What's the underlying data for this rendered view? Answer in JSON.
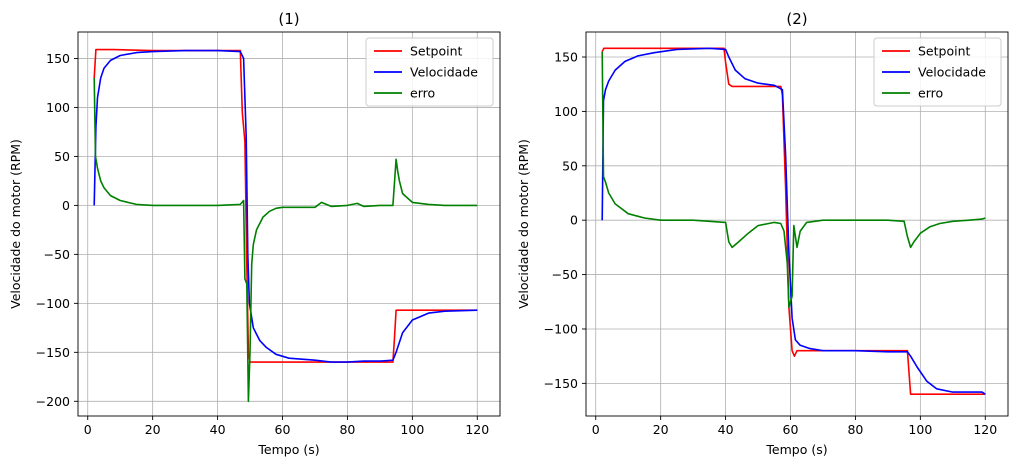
{
  "figure": {
    "background": "#ffffff",
    "grid_color": "#b0b0b0"
  },
  "chart_data": [
    {
      "type": "line",
      "title": "(1)",
      "xlabel": "Tempo (s)",
      "ylabel": "Velocidade do motor (RPM)",
      "xlim": [
        -3,
        127
      ],
      "ylim": [
        -215,
        177
      ],
      "xticks": [
        0,
        20,
        40,
        60,
        80,
        100,
        120
      ],
      "yticks": [
        -200,
        -150,
        -100,
        -50,
        0,
        50,
        100,
        150
      ],
      "grid": true,
      "legend": "top-right",
      "series": [
        {
          "name": "Setpoint",
          "color": "#ff0000",
          "x": [
            2,
            2.5,
            8,
            20,
            35,
            47,
            47.6,
            48.4,
            49,
            49.5,
            50,
            60,
            70,
            80,
            90,
            94,
            94.5,
            95,
            100,
            110,
            120
          ],
          "y": [
            130,
            159,
            159,
            158,
            158,
            158,
            95,
            65,
            -60,
            -150,
            -160,
            -160,
            -160,
            -160,
            -160,
            -160,
            -135,
            -107,
            -107,
            -107,
            -107
          ]
        },
        {
          "name": "Velocidade",
          "color": "#0000ff",
          "x": [
            2,
            2.5,
            3,
            4,
            5,
            7,
            10,
            15,
            20,
            30,
            40,
            47,
            48,
            48.8,
            49.3,
            49.8,
            51,
            53,
            55,
            58,
            62,
            66,
            70,
            75,
            80,
            85,
            90,
            94,
            95,
            97,
            100,
            105,
            110,
            120
          ],
          "y": [
            0,
            80,
            110,
            130,
            140,
            148,
            153,
            156,
            157,
            158,
            158,
            157,
            150,
            70,
            -50,
            -100,
            -125,
            -138,
            -145,
            -152,
            -156,
            -157,
            -158,
            -160,
            -160,
            -159,
            -159,
            -158,
            -150,
            -130,
            -117,
            -110,
            -108,
            -107
          ]
        },
        {
          "name": "erro",
          "color": "#008000",
          "x": [
            2,
            2.4,
            3,
            4,
            5,
            7,
            10,
            15,
            20,
            30,
            40,
            47,
            48,
            48.4,
            49,
            49.5,
            50,
            50.5,
            51,
            52,
            54,
            56,
            58,
            60,
            65,
            70,
            72,
            75,
            80,
            83,
            85,
            90,
            94,
            95,
            95.5,
            96,
            97,
            100,
            105,
            110,
            120
          ],
          "y": [
            130,
            50,
            38,
            25,
            18,
            10,
            5,
            1,
            0,
            0,
            0,
            1,
            5,
            -75,
            -80,
            -200,
            -150,
            -60,
            -40,
            -25,
            -12,
            -6,
            -3,
            -2,
            -2,
            -2,
            3,
            -1,
            0,
            2,
            -1,
            0,
            0,
            47,
            35,
            25,
            12,
            3,
            1,
            0,
            0
          ]
        }
      ]
    },
    {
      "type": "line",
      "title": "(2)",
      "xlabel": "Tempo (s)",
      "ylabel": "Velocidade do motor (RPM)",
      "xlim": [
        -3,
        127
      ],
      "ylim": [
        -180,
        173
      ],
      "xticks": [
        0,
        20,
        40,
        60,
        80,
        100,
        120
      ],
      "yticks": [
        -150,
        -100,
        -50,
        0,
        50,
        100,
        150
      ],
      "grid": true,
      "legend": "top-right",
      "series": [
        {
          "name": "Setpoint",
          "color": "#ff0000",
          "x": [
            2,
            2.5,
            10,
            20,
            30,
            39.5,
            40,
            41,
            42,
            45,
            50,
            57,
            57.5,
            58.5,
            59.5,
            60.5,
            61.2,
            62,
            65,
            70,
            80,
            90,
            96,
            96.5,
            97,
            100,
            110,
            120
          ],
          "y": [
            155,
            158,
            158,
            158,
            158,
            158,
            145,
            125,
            123,
            123,
            123,
            123,
            115,
            30,
            -80,
            -120,
            -125,
            -120,
            -120,
            -120,
            -120,
            -120,
            -120,
            -140,
            -160,
            -160,
            -160,
            -160
          ]
        },
        {
          "name": "Velocidade",
          "color": "#0000ff",
          "x": [
            2,
            2.4,
            3,
            4,
            6,
            9,
            13,
            18,
            25,
            35,
            40,
            41,
            43,
            46,
            50,
            55,
            57.5,
            58.5,
            59.5,
            60.5,
            61.5,
            63,
            66,
            70,
            80,
            90,
            96,
            97,
            99,
            102,
            105,
            110,
            119,
            120
          ],
          "y": [
            0,
            110,
            120,
            128,
            138,
            146,
            151,
            154,
            157,
            158,
            157,
            150,
            138,
            130,
            126,
            124,
            120,
            60,
            -30,
            -90,
            -110,
            -115,
            -118,
            -120,
            -120,
            -121,
            -121,
            -125,
            -135,
            -148,
            -155,
            -158,
            -158,
            -160
          ]
        },
        {
          "name": "erro",
          "color": "#008000",
          "x": [
            2,
            2.4,
            3,
            4,
            6,
            10,
            15,
            20,
            30,
            40,
            41,
            42,
            44,
            47,
            50,
            55,
            57,
            58,
            59,
            59.5,
            60.5,
            61,
            62,
            63,
            65,
            70,
            80,
            90,
            95,
            96,
            97,
            98,
            100,
            103,
            106,
            110,
            115,
            119,
            120
          ],
          "y": [
            155,
            40,
            35,
            25,
            15,
            6,
            2,
            0,
            0,
            -2,
            -20,
            -25,
            -20,
            -12,
            -5,
            -2,
            -3,
            -10,
            -40,
            -80,
            -70,
            -5,
            -25,
            -10,
            -2,
            0,
            0,
            0,
            -1,
            -15,
            -25,
            -20,
            -12,
            -6,
            -3,
            -1,
            0,
            1,
            2
          ]
        }
      ]
    }
  ]
}
